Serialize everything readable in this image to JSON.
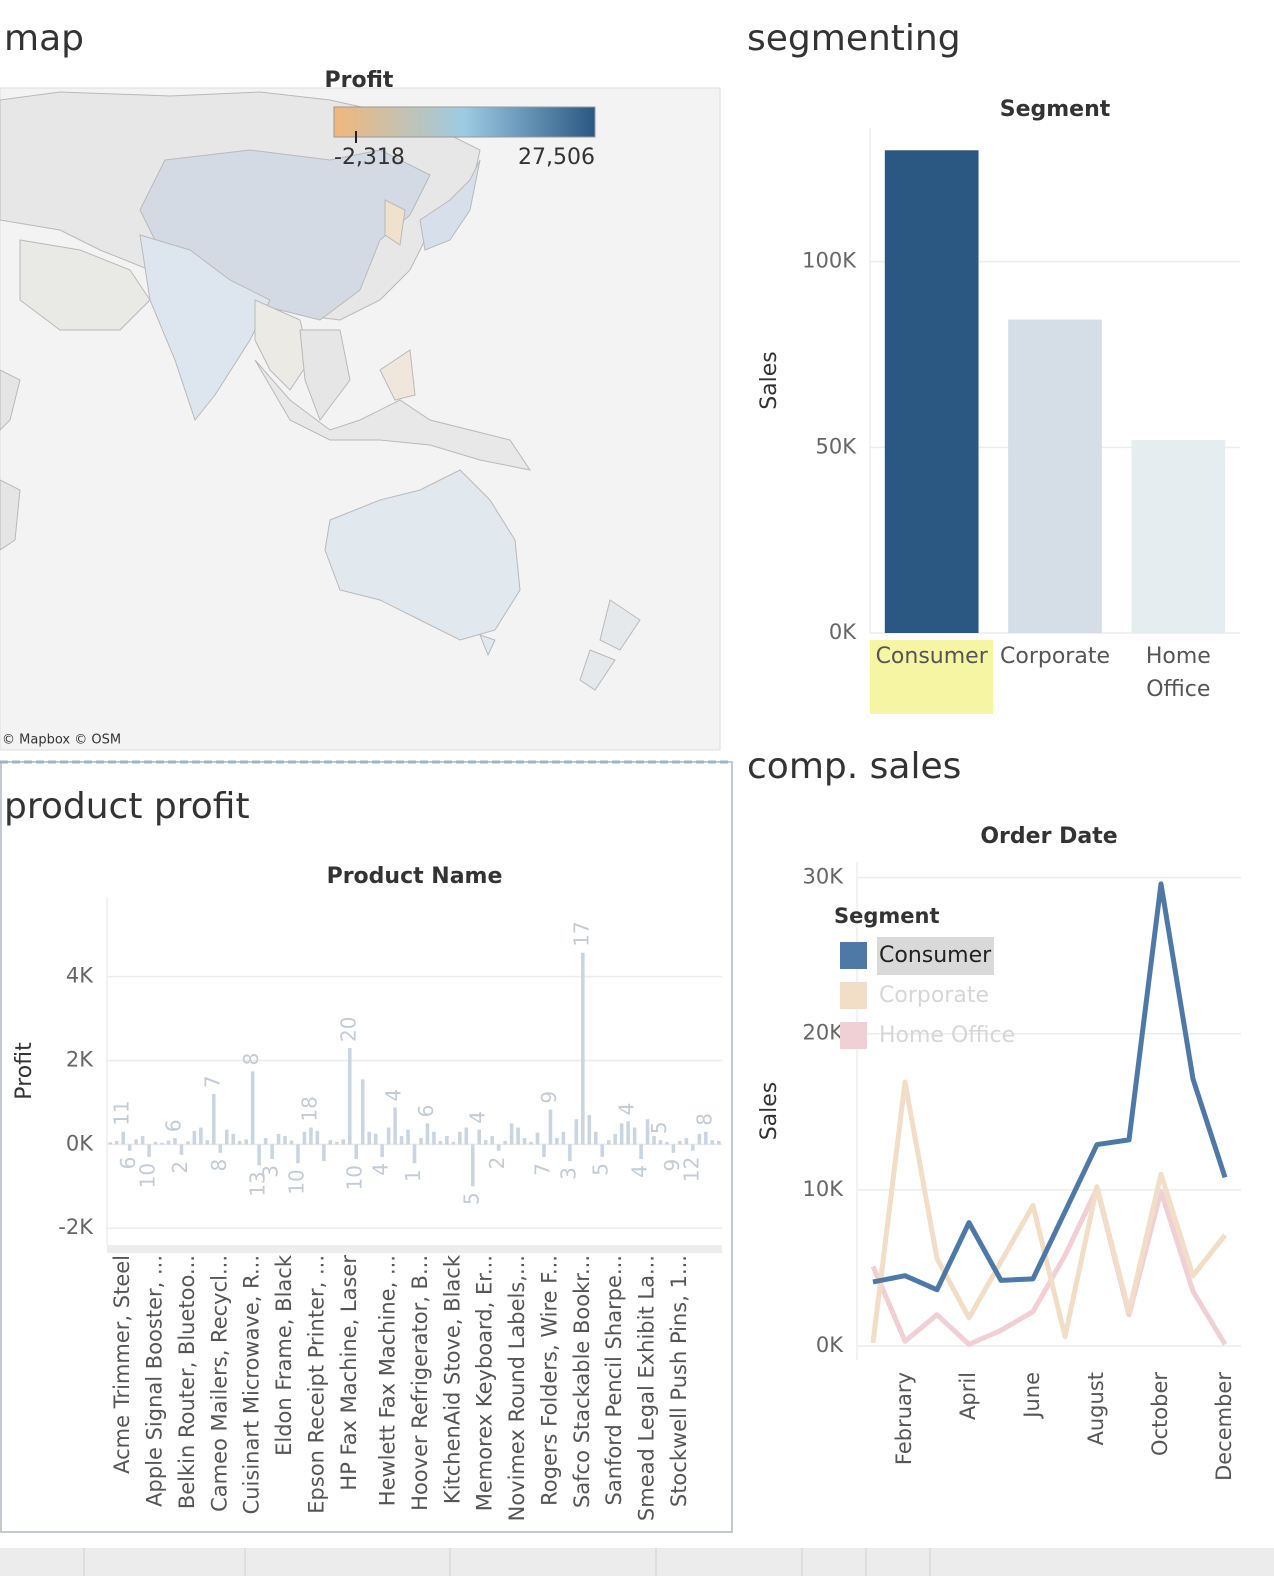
{
  "map": {
    "title": "map",
    "legend_title": "Profit",
    "legend_range": [
      -5064,
      27506
    ],
    "legend_colors": [
      "#f2b77a",
      "#9ccbe3",
      "#2a5783"
    ],
    "legend_ticks": [
      {
        "value": -2318,
        "label": "-2,318"
      },
      {
        "value": 27506,
        "label": "27,506"
      }
    ],
    "attribution": "© Mapbox © OSM"
  },
  "chart_data": [
    {
      "type": "bar",
      "title": "segmenting",
      "header": "Segment",
      "y_label": "Sales",
      "categories": [
        "Consumer",
        "Corporate",
        "Home Office"
      ],
      "values": [
        130000,
        84400,
        52000
      ],
      "colors": [
        "#2b5783",
        "#d5dde7",
        "#e6edf1"
      ],
      "selected_index": 0,
      "ylim": [
        0,
        136000
      ],
      "yticks": [
        {
          "value": 0,
          "label": "0K"
        },
        {
          "value": 50000,
          "label": "50K"
        },
        {
          "value": 100000,
          "label": "100K"
        }
      ],
      "grid": true
    },
    {
      "type": "bar",
      "title": "product profit",
      "header": "Product Name",
      "y_label": "Profit",
      "color": "#c9d5e0",
      "categories": [
        null,
        null,
        "Acme Trimmer, Steel",
        null,
        null,
        null,
        null,
        "Apple Signal Booster, ...",
        null,
        null,
        null,
        null,
        "Belkin Router, Bluetoo...",
        null,
        null,
        null,
        null,
        "Cameo Mailers, Recycl...",
        null,
        null,
        null,
        null,
        "Cuisinart Microwave, R...",
        null,
        null,
        null,
        null,
        "Eldon Frame, Black",
        null,
        null,
        null,
        null,
        "Epson Receipt Printer, ...",
        null,
        null,
        null,
        null,
        "HP Fax Machine, Laser",
        null,
        null,
        null,
        null,
        null,
        "Hewlett Fax Machine, ...",
        null,
        null,
        null,
        null,
        "Hoover Refrigerator, B...",
        null,
        null,
        null,
        null,
        "KitchenAid Stove, Black",
        null,
        null,
        null,
        null,
        "Memorex Keyboard, Er...",
        null,
        null,
        null,
        null,
        "Novimex Round Labels,...",
        null,
        null,
        null,
        null,
        "Rogers Folders, Wire F...",
        null,
        null,
        null,
        null,
        "Safco Stackable Bookr...",
        null,
        null,
        null,
        null,
        "Sanford Pencil Sharpe...",
        null,
        null,
        null,
        null,
        "Smead Legal Exhibit La...",
        null,
        null,
        null,
        null,
        "Stockwell Push Pins, 1...",
        null,
        null,
        null,
        null,
        null,
        null
      ],
      "values": [
        50,
        80,
        300,
        -150,
        120,
        200,
        -300,
        60,
        40,
        90,
        150,
        -250,
        70,
        320,
        400,
        100,
        1200,
        -200,
        350,
        250,
        80,
        120,
        1740,
        -500,
        150,
        -350,
        250,
        200,
        90,
        -450,
        300,
        400,
        320,
        -400,
        100,
        60,
        120,
        2300,
        -350,
        1550,
        300,
        250,
        -300,
        400,
        880,
        200,
        350,
        -450,
        150,
        500,
        300,
        80,
        200,
        60,
        300,
        400,
        -1000,
        350,
        100,
        200,
        -150,
        80,
        500,
        400,
        150,
        60,
        280,
        -300,
        830,
        150,
        300,
        -400,
        600,
        4570,
        700,
        300,
        -300,
        100,
        250,
        500,
        550,
        400,
        -350,
        600,
        200,
        100,
        60,
        -200,
        80,
        150,
        -150,
        250,
        300,
        100,
        80
      ],
      "quantity": [
        null,
        null,
        11,
        6,
        null,
        null,
        10,
        null,
        null,
        null,
        6,
        2,
        null,
        null,
        null,
        null,
        7,
        8,
        null,
        null,
        null,
        null,
        8,
        13,
        null,
        3,
        null,
        null,
        null,
        10,
        null,
        18,
        null,
        null,
        null,
        null,
        null,
        20,
        10,
        null,
        null,
        null,
        4,
        null,
        4,
        null,
        null,
        1,
        null,
        6,
        null,
        null,
        null,
        null,
        null,
        null,
        5,
        4,
        null,
        null,
        2,
        null,
        null,
        null,
        null,
        null,
        null,
        7,
        9,
        null,
        null,
        3,
        null,
        17,
        null,
        null,
        5,
        null,
        null,
        null,
        4,
        null,
        4,
        null,
        null,
        5,
        null,
        9,
        null,
        null,
        12,
        null,
        8,
        null,
        null
      ],
      "ylim": [
        -2400,
        5900
      ],
      "yticks": [
        {
          "value": -2000,
          "label": "-2K"
        },
        {
          "value": 0,
          "label": "0K"
        },
        {
          "value": 2000,
          "label": "2K"
        },
        {
          "value": 4000,
          "label": "4K"
        }
      ],
      "grid": true
    },
    {
      "type": "line",
      "title": "comp. sales",
      "header": "Order Date",
      "y_label": "Sales",
      "legend_title": "Segment",
      "selected_series": 0,
      "categories": [
        null,
        "February",
        null,
        "April",
        null,
        "June",
        null,
        "August",
        null,
        "October",
        null,
        "December"
      ],
      "series": [
        {
          "name": "Consumer",
          "color": "#4e79a7",
          "values": [
            4100,
            4500,
            3600,
            7900,
            4200,
            4300,
            8600,
            12900,
            13200,
            29600,
            17100,
            10800
          ]
        },
        {
          "name": "Corporate",
          "color": "#f2ddc6",
          "values": [
            200,
            16900,
            5600,
            1800,
            5400,
            9000,
            600,
            10200,
            2200,
            11000,
            4500,
            7100
          ]
        },
        {
          "name": "Home Office",
          "color": "#f1d0d5",
          "values": [
            5100,
            300,
            2000,
            100,
            1000,
            2200,
            5800,
            10100,
            2000,
            9900,
            3500,
            100
          ]
        }
      ],
      "ylim": [
        -900,
        31000
      ],
      "yticks": [
        {
          "value": 0,
          "label": "0K"
        },
        {
          "value": 10000,
          "label": "10K"
        },
        {
          "value": 20000,
          "label": "20K"
        },
        {
          "value": 30000,
          "label": "30K"
        }
      ],
      "grid": true
    }
  ]
}
